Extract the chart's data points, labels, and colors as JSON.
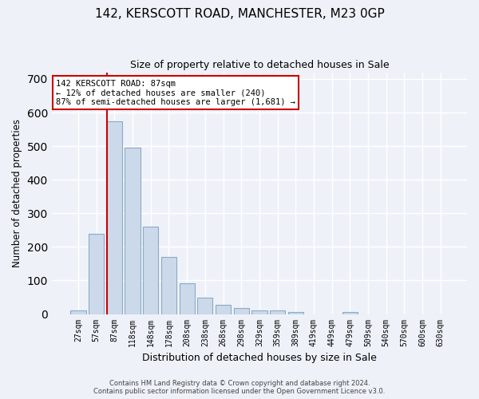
{
  "title": "142, KERSCOTT ROAD, MANCHESTER, M23 0GP",
  "subtitle": "Size of property relative to detached houses in Sale",
  "xlabel": "Distribution of detached houses by size in Sale",
  "ylabel": "Number of detached properties",
  "bar_color": "#ccd9ea",
  "bar_edge_color": "#8aaac8",
  "marker_line_color": "#cc0000",
  "marker_value_label": "87sqm",
  "categories": [
    "27sqm",
    "57sqm",
    "87sqm",
    "118sqm",
    "148sqm",
    "178sqm",
    "208sqm",
    "238sqm",
    "268sqm",
    "298sqm",
    "329sqm",
    "359sqm",
    "389sqm",
    "419sqm",
    "449sqm",
    "479sqm",
    "509sqm",
    "540sqm",
    "570sqm",
    "600sqm",
    "630sqm"
  ],
  "values": [
    12,
    240,
    575,
    495,
    260,
    170,
    92,
    50,
    27,
    17,
    11,
    11,
    6,
    0,
    0,
    5,
    0,
    0,
    0,
    0,
    0
  ],
  "ylim": [
    0,
    720
  ],
  "yticks": [
    0,
    100,
    200,
    300,
    400,
    500,
    600,
    700
  ],
  "annotation_line1": "142 KERSCOTT ROAD: 87sqm",
  "annotation_line2": "← 12% of detached houses are smaller (240)",
  "annotation_line3": "87% of semi-detached houses are larger (1,681) →",
  "annotation_box_color": "white",
  "annotation_box_edge_color": "#cc0000",
  "footer_line1": "Contains HM Land Registry data © Crown copyright and database right 2024.",
  "footer_line2": "Contains public sector information licensed under the Open Government Licence v3.0.",
  "background_color": "#eef2f8",
  "grid_color": "white",
  "fig_width": 6.0,
  "fig_height": 5.0,
  "dpi": 100
}
